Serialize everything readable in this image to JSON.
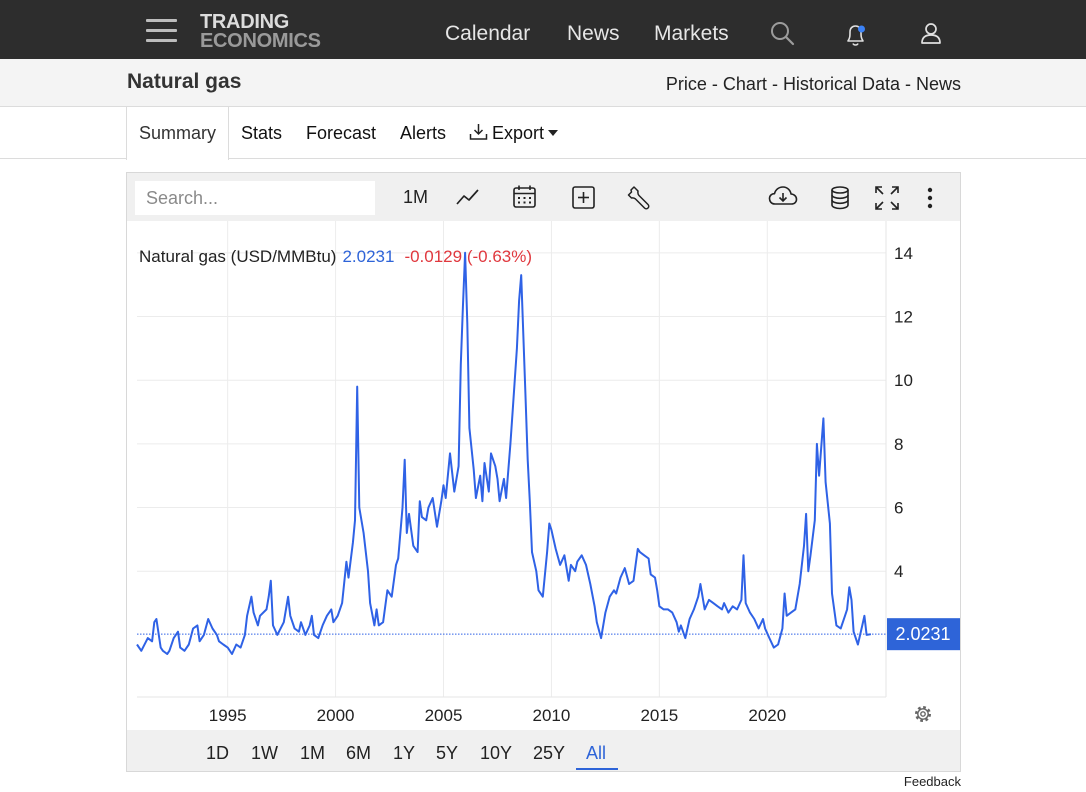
{
  "nav": {
    "logo_line1": "TRADING",
    "logo_line2": "ECONOMICS",
    "links": [
      "Calendar",
      "News",
      "Markets"
    ]
  },
  "title_bar": {
    "title": "Natural gas",
    "crumbs": [
      "Price",
      "Chart",
      "Historical Data",
      "News"
    ],
    "separator": " - "
  },
  "tabs": [
    "Summary",
    "Stats",
    "Forecast",
    "Alerts",
    "Export"
  ],
  "toolbar": {
    "search_placeholder": "Search...",
    "interval": "1M"
  },
  "chart_header": {
    "name": "Natural gas (USD/MMBtu)",
    "last": "2.0231",
    "change": "-0.0129 (-0.63%)"
  },
  "price_tag": "2.0231",
  "periods": [
    "1D",
    "1W",
    "1M",
    "6M",
    "1Y",
    "5Y",
    "10Y",
    "25Y",
    "All"
  ],
  "active_period": "All",
  "feedback": "Feedback",
  "colors": {
    "line": "#2f62e6",
    "change_negative": "#e0383e",
    "last_value": "#2e64d8",
    "accent": "#2e64d8"
  },
  "chart_data": {
    "type": "line",
    "x_ticks": [
      1995,
      2000,
      2005,
      2010,
      2015,
      2020
    ],
    "y_ticks": [
      4,
      6,
      8,
      10,
      12,
      14
    ],
    "xlim": [
      1990.8,
      2025.5
    ],
    "ylim": [
      0.05,
      15.0
    ],
    "grid": true,
    "last_value": 2.0231,
    "series": [
      {
        "values": [
          [
            1990.8,
            1.7
          ],
          [
            1991.0,
            1.5
          ],
          [
            1991.3,
            1.9
          ],
          [
            1991.5,
            1.8
          ],
          [
            1991.6,
            2.4
          ],
          [
            1991.7,
            2.5
          ],
          [
            1991.9,
            1.6
          ],
          [
            1992.0,
            1.5
          ],
          [
            1992.2,
            1.4
          ],
          [
            1992.3,
            1.5
          ],
          [
            1992.5,
            1.9
          ],
          [
            1992.7,
            2.1
          ],
          [
            1992.8,
            1.6
          ],
          [
            1993.0,
            1.5
          ],
          [
            1993.2,
            1.7
          ],
          [
            1993.4,
            2.2
          ],
          [
            1993.6,
            2.3
          ],
          [
            1993.7,
            1.8
          ],
          [
            1993.9,
            2.0
          ],
          [
            1994.1,
            2.5
          ],
          [
            1994.3,
            2.2
          ],
          [
            1994.5,
            2.0
          ],
          [
            1994.6,
            1.8
          ],
          [
            1994.8,
            1.7
          ],
          [
            1995.0,
            1.6
          ],
          [
            1995.2,
            1.4
          ],
          [
            1995.4,
            1.7
          ],
          [
            1995.6,
            1.6
          ],
          [
            1995.8,
            2.0
          ],
          [
            1995.9,
            2.6
          ],
          [
            1996.1,
            3.2
          ],
          [
            1996.2,
            2.7
          ],
          [
            1996.4,
            2.3
          ],
          [
            1996.5,
            2.6
          ],
          [
            1996.8,
            2.8
          ],
          [
            1996.9,
            3.2
          ],
          [
            1997.0,
            3.7
          ],
          [
            1997.1,
            2.3
          ],
          [
            1997.3,
            2.0
          ],
          [
            1997.6,
            2.4
          ],
          [
            1997.8,
            3.2
          ],
          [
            1997.9,
            2.6
          ],
          [
            1998.1,
            2.2
          ],
          [
            1998.3,
            2.1
          ],
          [
            1998.4,
            2.4
          ],
          [
            1998.6,
            2.0
          ],
          [
            1998.8,
            2.3
          ],
          [
            1998.9,
            2.6
          ],
          [
            1999.0,
            2.0
          ],
          [
            1999.2,
            1.9
          ],
          [
            1999.4,
            2.3
          ],
          [
            1999.6,
            2.6
          ],
          [
            1999.8,
            2.8
          ],
          [
            1999.9,
            2.4
          ],
          [
            2000.1,
            2.6
          ],
          [
            2000.3,
            3.0
          ],
          [
            2000.5,
            4.3
          ],
          [
            2000.6,
            3.8
          ],
          [
            2000.8,
            4.9
          ],
          [
            2000.9,
            5.6
          ],
          [
            2001.0,
            9.8
          ],
          [
            2001.1,
            6.0
          ],
          [
            2001.3,
            5.2
          ],
          [
            2001.5,
            4.0
          ],
          [
            2001.6,
            3.0
          ],
          [
            2001.8,
            2.3
          ],
          [
            2001.9,
            2.8
          ],
          [
            2002.0,
            2.3
          ],
          [
            2002.2,
            2.4
          ],
          [
            2002.4,
            3.4
          ],
          [
            2002.6,
            3.2
          ],
          [
            2002.8,
            4.2
          ],
          [
            2002.9,
            4.4
          ],
          [
            2003.1,
            6.0
          ],
          [
            2003.2,
            7.5
          ],
          [
            2003.3,
            5.2
          ],
          [
            2003.4,
            5.8
          ],
          [
            2003.6,
            4.8
          ],
          [
            2003.8,
            4.6
          ],
          [
            2003.9,
            6.2
          ],
          [
            2004.0,
            5.7
          ],
          [
            2004.2,
            5.6
          ],
          [
            2004.3,
            6.0
          ],
          [
            2004.5,
            6.3
          ],
          [
            2004.7,
            5.4
          ],
          [
            2004.9,
            6.2
          ],
          [
            2005.0,
            6.7
          ],
          [
            2005.1,
            6.3
          ],
          [
            2005.3,
            7.7
          ],
          [
            2005.5,
            6.5
          ],
          [
            2005.7,
            7.3
          ],
          [
            2005.8,
            10.5
          ],
          [
            2005.9,
            12.3
          ],
          [
            2006.0,
            14.0
          ],
          [
            2006.1,
            11.8
          ],
          [
            2006.2,
            8.5
          ],
          [
            2006.4,
            7.2
          ],
          [
            2006.5,
            6.3
          ],
          [
            2006.7,
            7.0
          ],
          [
            2006.8,
            6.2
          ],
          [
            2006.9,
            7.4
          ],
          [
            2007.1,
            6.5
          ],
          [
            2007.2,
            7.7
          ],
          [
            2007.4,
            7.3
          ],
          [
            2007.5,
            6.9
          ],
          [
            2007.6,
            6.2
          ],
          [
            2007.8,
            6.9
          ],
          [
            2007.9,
            6.3
          ],
          [
            2008.1,
            8.0
          ],
          [
            2008.2,
            9.0
          ],
          [
            2008.4,
            11.0
          ],
          [
            2008.5,
            12.5
          ],
          [
            2008.6,
            13.3
          ],
          [
            2008.8,
            9.5
          ],
          [
            2008.9,
            7.5
          ],
          [
            2009.0,
            6.2
          ],
          [
            2009.1,
            4.6
          ],
          [
            2009.3,
            4.0
          ],
          [
            2009.4,
            3.4
          ],
          [
            2009.6,
            3.2
          ],
          [
            2009.8,
            4.6
          ],
          [
            2009.9,
            5.5
          ],
          [
            2010.0,
            5.3
          ],
          [
            2010.2,
            4.7
          ],
          [
            2010.4,
            4.2
          ],
          [
            2010.6,
            4.5
          ],
          [
            2010.8,
            3.7
          ],
          [
            2010.9,
            4.2
          ],
          [
            2011.1,
            4.0
          ],
          [
            2011.2,
            4.3
          ],
          [
            2011.4,
            4.5
          ],
          [
            2011.6,
            4.2
          ],
          [
            2011.8,
            3.6
          ],
          [
            2012.0,
            2.9
          ],
          [
            2012.1,
            2.4
          ],
          [
            2012.3,
            1.9
          ],
          [
            2012.5,
            2.7
          ],
          [
            2012.7,
            3.2
          ],
          [
            2012.9,
            3.4
          ],
          [
            2013.0,
            3.3
          ],
          [
            2013.2,
            3.8
          ],
          [
            2013.4,
            4.1
          ],
          [
            2013.6,
            3.6
          ],
          [
            2013.8,
            3.7
          ],
          [
            2013.9,
            4.2
          ],
          [
            2014.0,
            4.7
          ],
          [
            2014.1,
            4.6
          ],
          [
            2014.3,
            4.5
          ],
          [
            2014.5,
            4.4
          ],
          [
            2014.6,
            3.9
          ],
          [
            2014.8,
            3.8
          ],
          [
            2014.9,
            3.4
          ],
          [
            2015.0,
            2.9
          ],
          [
            2015.2,
            2.8
          ],
          [
            2015.4,
            2.8
          ],
          [
            2015.6,
            2.7
          ],
          [
            2015.8,
            2.4
          ],
          [
            2015.9,
            2.1
          ],
          [
            2016.0,
            2.3
          ],
          [
            2016.2,
            1.9
          ],
          [
            2016.4,
            2.5
          ],
          [
            2016.6,
            2.8
          ],
          [
            2016.8,
            3.2
          ],
          [
            2016.9,
            3.6
          ],
          [
            2017.1,
            2.8
          ],
          [
            2017.3,
            3.1
          ],
          [
            2017.5,
            3.0
          ],
          [
            2017.7,
            2.9
          ],
          [
            2017.9,
            2.8
          ],
          [
            2018.0,
            3.0
          ],
          [
            2018.2,
            2.7
          ],
          [
            2018.4,
            2.9
          ],
          [
            2018.6,
            2.8
          ],
          [
            2018.8,
            3.1
          ],
          [
            2018.9,
            4.5
          ],
          [
            2019.0,
            3.0
          ],
          [
            2019.2,
            2.7
          ],
          [
            2019.4,
            2.5
          ],
          [
            2019.6,
            2.2
          ],
          [
            2019.8,
            2.5
          ],
          [
            2019.9,
            2.2
          ],
          [
            2020.1,
            1.9
          ],
          [
            2020.3,
            1.6
          ],
          [
            2020.5,
            1.7
          ],
          [
            2020.7,
            2.2
          ],
          [
            2020.8,
            3.3
          ],
          [
            2020.9,
            2.6
          ],
          [
            2021.1,
            2.7
          ],
          [
            2021.3,
            2.8
          ],
          [
            2021.5,
            3.6
          ],
          [
            2021.7,
            4.8
          ],
          [
            2021.8,
            5.8
          ],
          [
            2021.9,
            4.0
          ],
          [
            2022.0,
            4.5
          ],
          [
            2022.2,
            5.6
          ],
          [
            2022.3,
            8.0
          ],
          [
            2022.4,
            7.0
          ],
          [
            2022.6,
            8.8
          ],
          [
            2022.7,
            6.8
          ],
          [
            2022.9,
            5.5
          ],
          [
            2023.0,
            3.3
          ],
          [
            2023.2,
            2.3
          ],
          [
            2023.4,
            2.2
          ],
          [
            2023.6,
            2.6
          ],
          [
            2023.7,
            2.8
          ],
          [
            2023.8,
            3.5
          ],
          [
            2023.9,
            3.1
          ],
          [
            2024.0,
            2.1
          ],
          [
            2024.2,
            1.7
          ],
          [
            2024.4,
            2.3
          ],
          [
            2024.5,
            2.6
          ],
          [
            2024.6,
            2.0
          ],
          [
            2024.8,
            2.0231
          ]
        ]
      }
    ]
  }
}
